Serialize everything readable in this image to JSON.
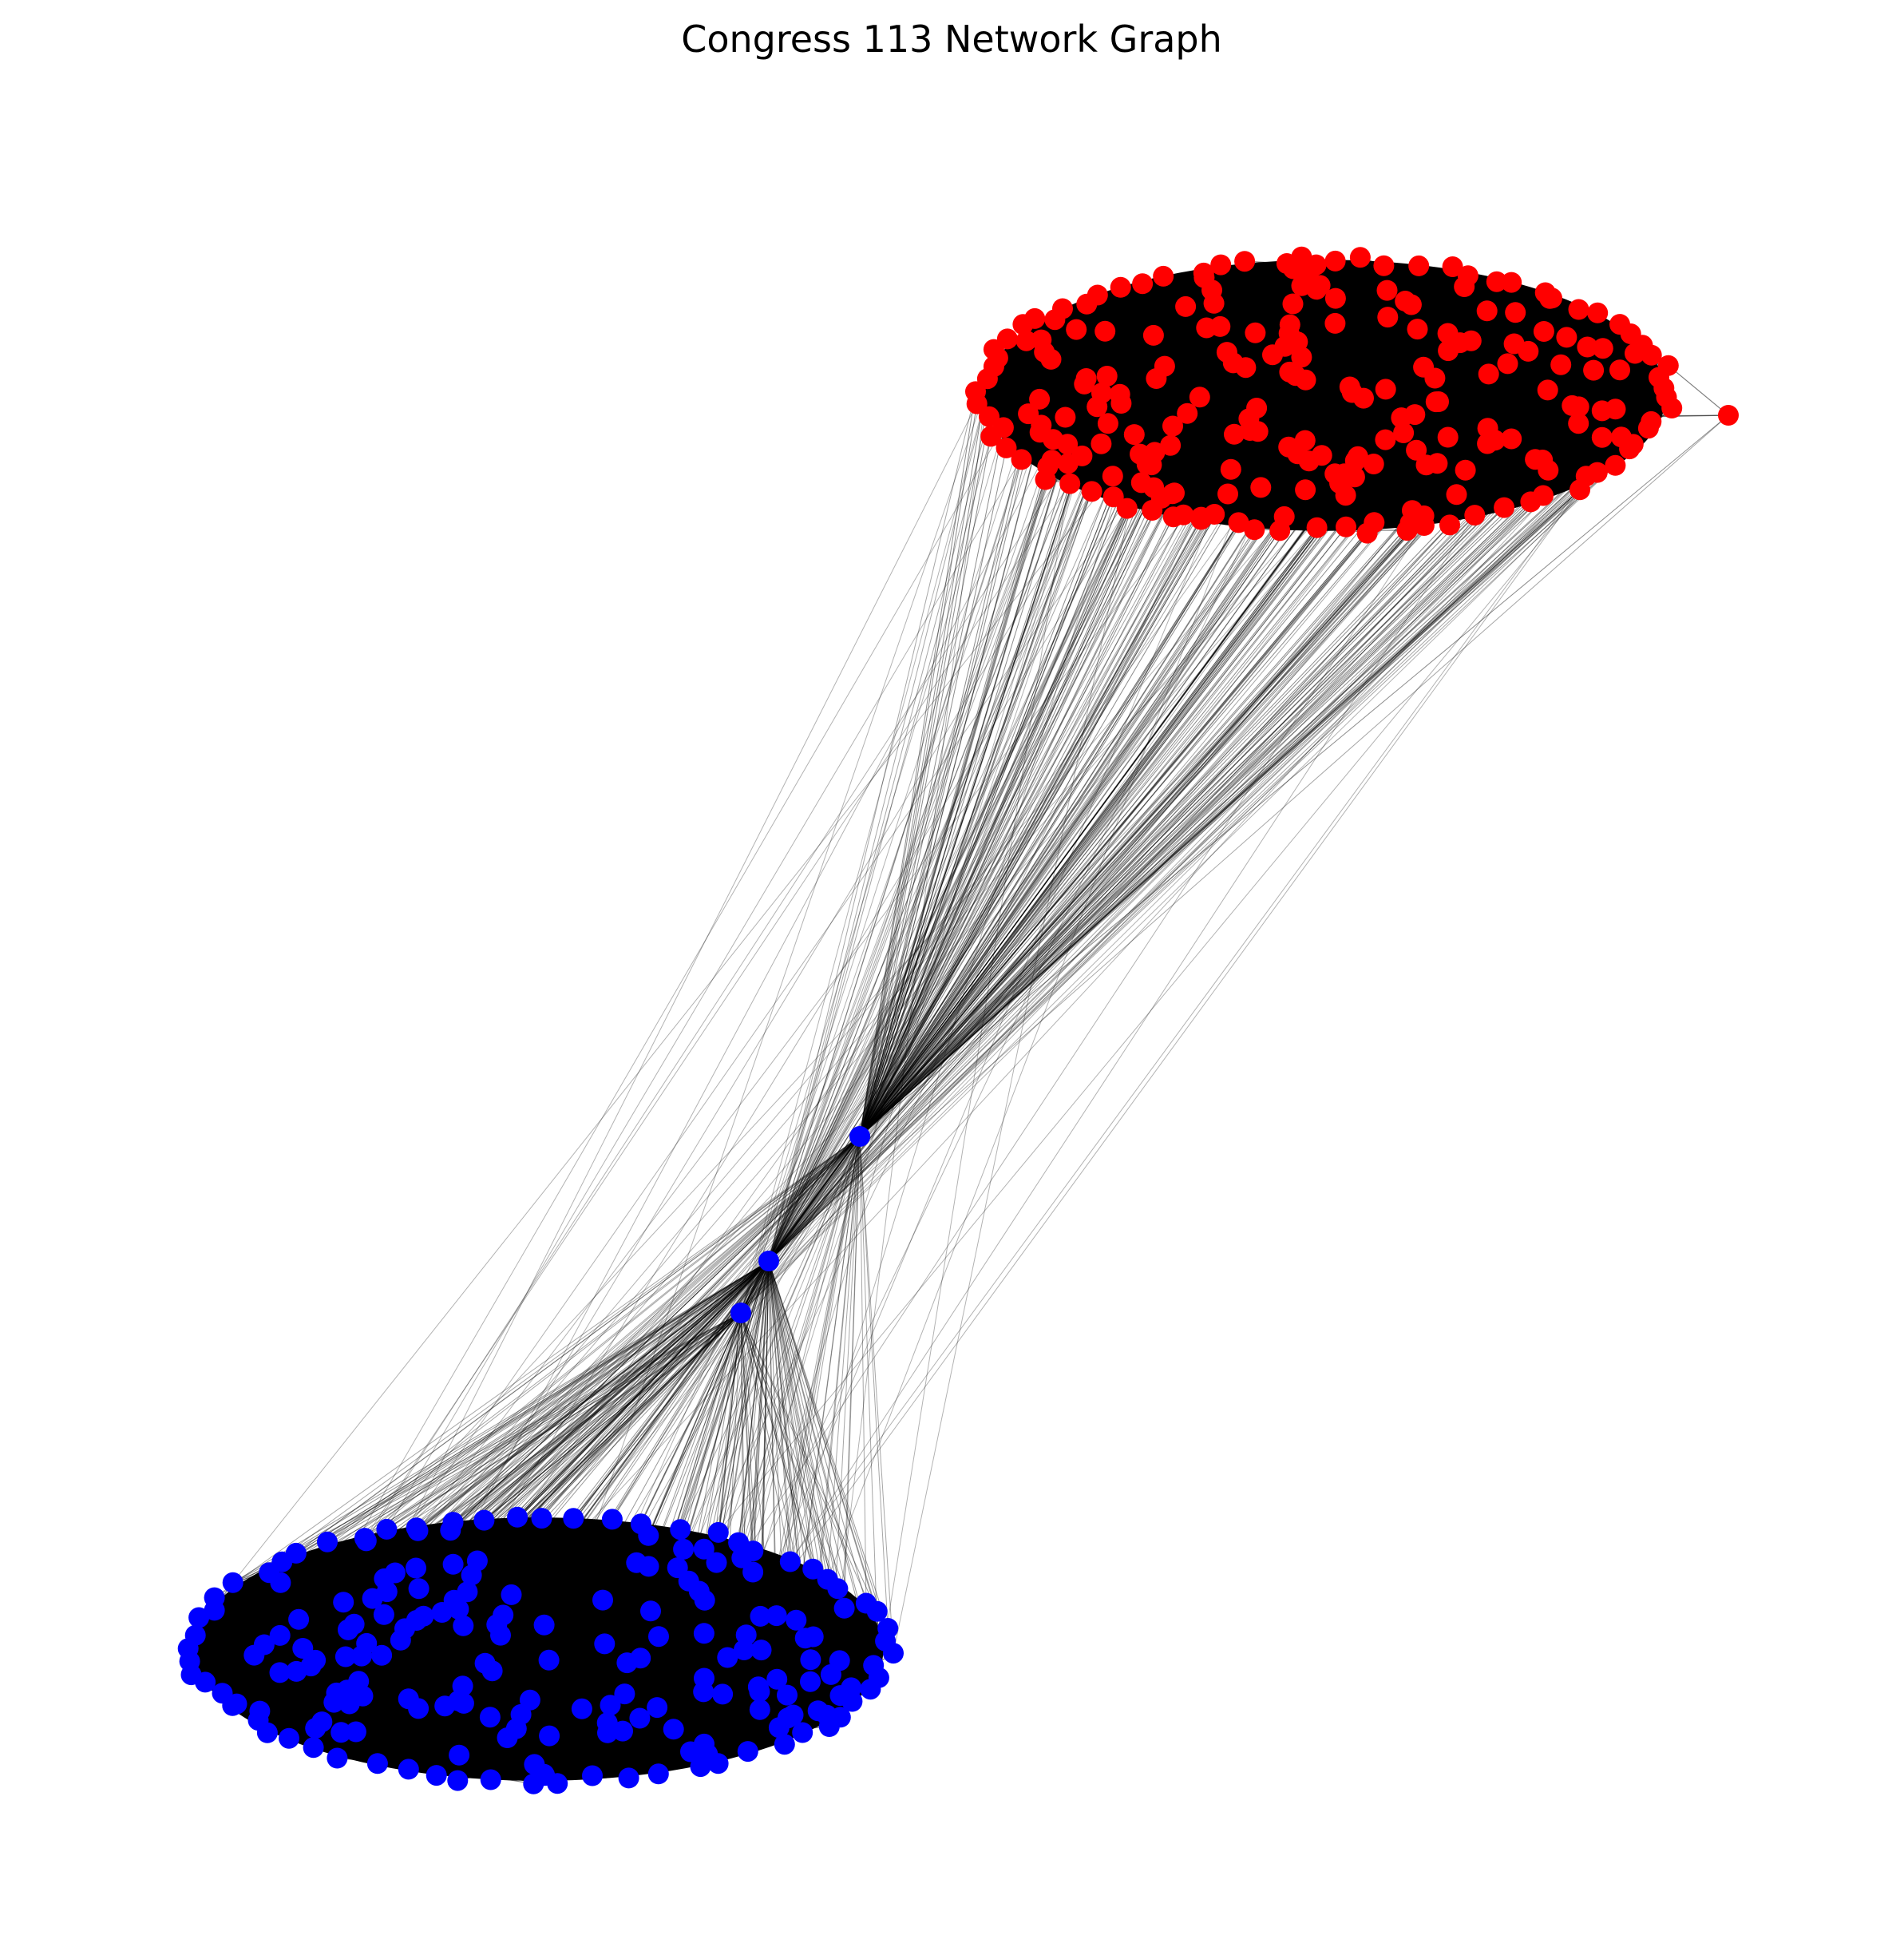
{
  "title": "Congress 113 Network Graph",
  "colors": {
    "background": "#ffffff",
    "edge": "#000000",
    "clusters": {
      "red": "#ff0000",
      "blue": "#0000ff"
    }
  },
  "clusters": [
    {
      "color": "red",
      "node_count": 236
    },
    {
      "color": "blue",
      "node_count": 200
    }
  ],
  "bridge_nodes": [
    {
      "color": "blue",
      "count": 3
    }
  ]
}
